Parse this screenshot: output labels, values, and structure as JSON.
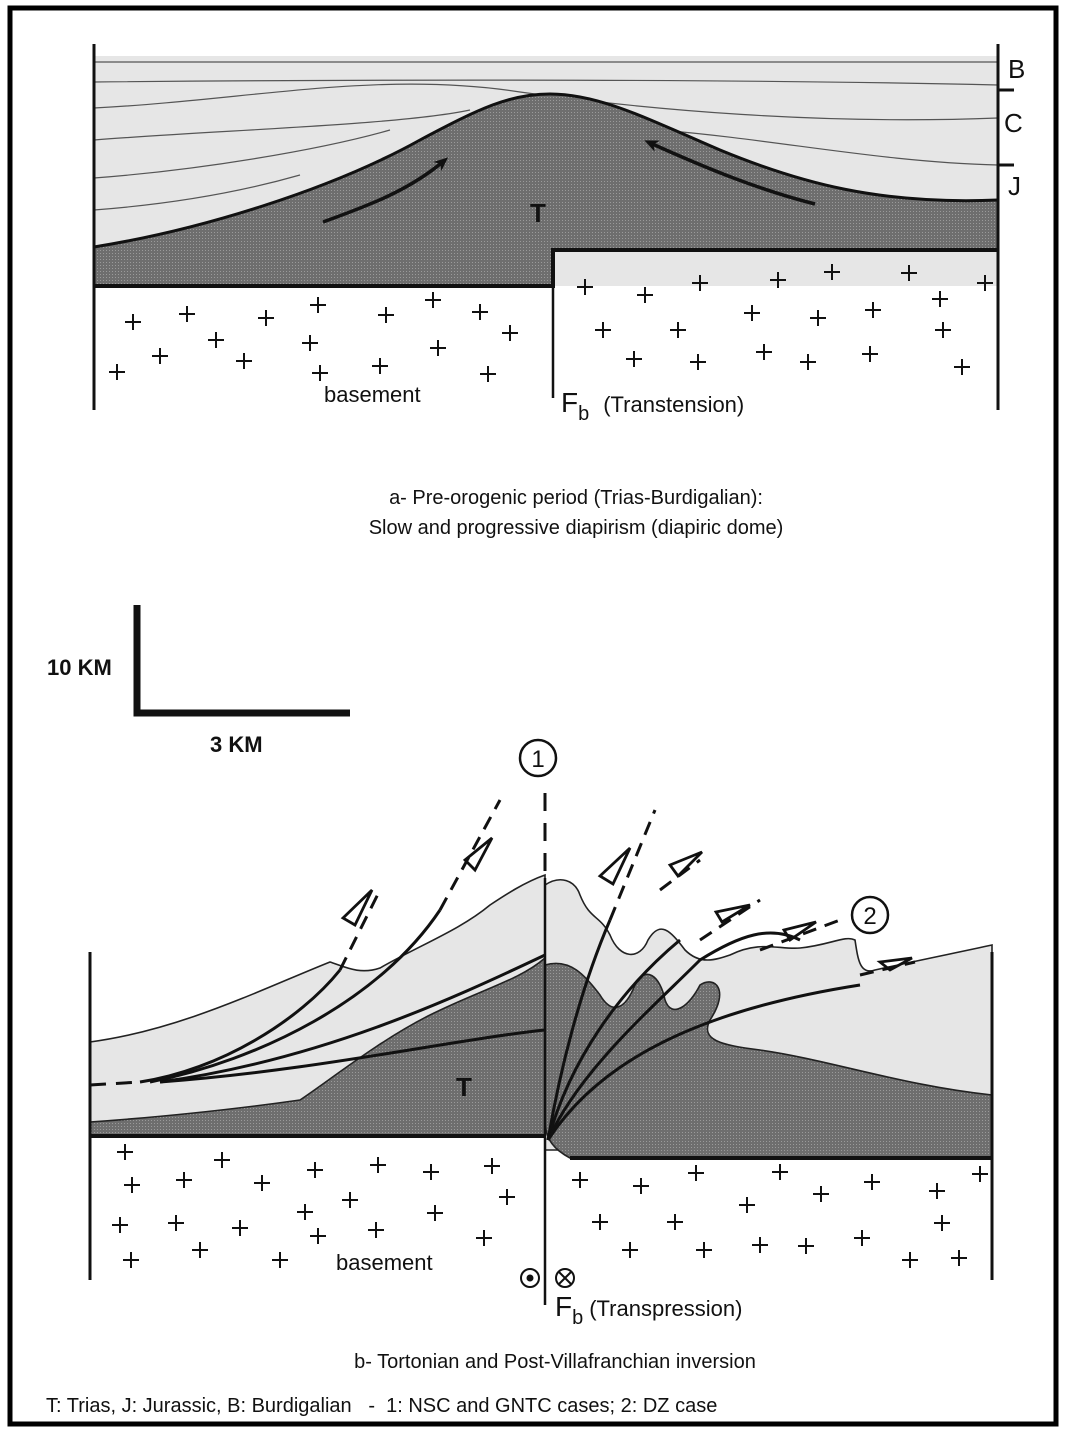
{
  "panel_a": {
    "unit_labels": {
      "burdigalian": "B",
      "cretaceous": "C",
      "jurassic": "J",
      "trias": "T"
    },
    "basement_label": "basement",
    "fault_symbol": "F",
    "fault_subscript": "b",
    "fault_mode": "(Transtension)",
    "caption_line1": "a- Pre-orogenic period (Trias-Burdigalian):",
    "caption_line2": "Slow and progressive diapirism (diapiric dome)"
  },
  "scale_bar": {
    "vertical_label": "10 KM",
    "horizontal_label": "3 KM"
  },
  "panel_b": {
    "marker_1": "1",
    "marker_2": "2",
    "trias_label": "T",
    "basement_label": "basement",
    "fault_symbol": "F",
    "fault_subscript": "b",
    "fault_mode": "(Transpression)",
    "caption": "b- Tortonian and Post-Villafranchian inversion"
  },
  "legend": "T: Trias, J: Jurassic, B: Burdigalian   -  1: NSC and GNTC cases; 2: DZ case",
  "colors": {
    "frame": "#000000",
    "sediment": "#e6e6e6",
    "trias": "#6e6e6e",
    "line": "#111111"
  }
}
